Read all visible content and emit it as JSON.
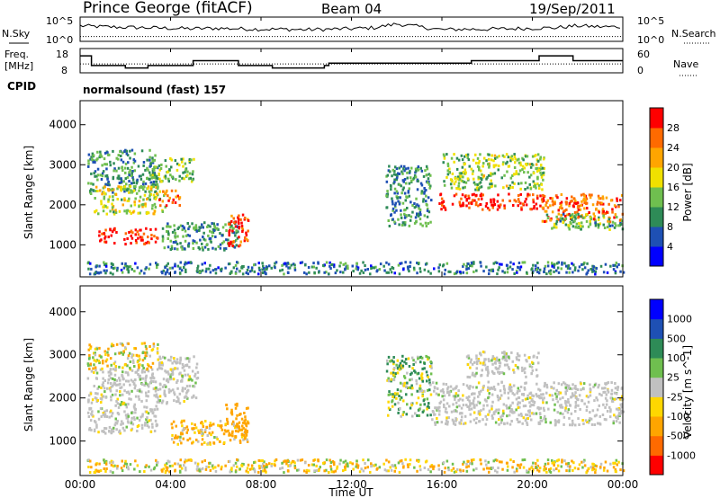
{
  "header": {
    "station": "Prince George (fitACF)",
    "beam": "Beam 04",
    "date": "19/Sep/2011"
  },
  "noise_panel": {
    "left_label": "N.Sky",
    "right_label": "N.Search",
    "left_ticks": [
      "10^5",
      "10^0"
    ],
    "right_ticks": [
      "10^5",
      "10^0"
    ]
  },
  "freq_panel": {
    "left_label_1": "Freq.",
    "left_label_2": "[MHz]",
    "right_label": "Nave",
    "left_ticks": [
      "18",
      "8"
    ],
    "right_ticks": [
      "60",
      "0"
    ]
  },
  "cpid": {
    "label": "CPID",
    "value": "normalsound (fast) 157"
  },
  "x_axis": {
    "label": "Time UT",
    "ticks": [
      "00:00",
      "04:00",
      "08:00",
      "12:00",
      "16:00",
      "20:00",
      "00:00"
    ]
  },
  "colors": {
    "power": [
      "#0000ff",
      "#1e50b4",
      "#2e8b57",
      "#6fbf4f",
      "#f0e000",
      "#ffa500",
      "#ff6a00",
      "#ff0000"
    ],
    "velocity": [
      "#ff0000",
      "#ff6a00",
      "#ffa500",
      "#ffd700",
      "#c0c0c0",
      "#6fbf4f",
      "#2e8b57",
      "#1e50b4",
      "#0000ff"
    ]
  },
  "chart_data": [
    {
      "type": "line",
      "name": "noise",
      "x": [
        0,
        1,
        2,
        3,
        4,
        5,
        6,
        7,
        8,
        9,
        10,
        11,
        12,
        13,
        14,
        15,
        16,
        17,
        18,
        19,
        20,
        21,
        22,
        23,
        24
      ],
      "sky": [
        3.2,
        3.0,
        2.9,
        2.8,
        2.7,
        2.6,
        2.7,
        2.6,
        2.5,
        2.5,
        2.4,
        2.5,
        2.6,
        2.8,
        3.6,
        3.0,
        2.4,
        2.5,
        2.5,
        2.6,
        2.7,
        2.8,
        3.2,
        3.0,
        3.0
      ],
      "search_level": 1.0,
      "xlim": [
        0,
        24
      ]
    },
    {
      "type": "line",
      "name": "frequency",
      "x": [
        0,
        0.5,
        0.5,
        1.0,
        1.0,
        2.0,
        2.0,
        3.0,
        3.0,
        5.0,
        5.0,
        7.0,
        7.0,
        8.5,
        8.5,
        10.8,
        10.8,
        11.0,
        11.0,
        17.3,
        17.3,
        20.3,
        20.3,
        21.8,
        21.8,
        24
      ],
      "freq": [
        15,
        15,
        11,
        11,
        11,
        11,
        10,
        10,
        11,
        11,
        13,
        13,
        11,
        11,
        10,
        10,
        11,
        11,
        12,
        12,
        13,
        13,
        15,
        15,
        13,
        13
      ],
      "nave_level": 22,
      "ylim": [
        8,
        18
      ]
    },
    {
      "type": "heatmap",
      "title": "",
      "xlabel": "Time UT",
      "ylabel": "Slant Range [km]",
      "colorbar_label": "Power [dB]",
      "colorbar_ticks": [
        4,
        8,
        12,
        16,
        20,
        24,
        28
      ],
      "clim": [
        0,
        30
      ],
      "xlim": [
        0,
        24
      ],
      "ylim": [
        200,
        4600
      ],
      "yticks": [
        1000,
        2000,
        3000,
        4000
      ],
      "regions": [
        {
          "t0": 0.3,
          "t1": 3.4,
          "r0": 2300,
          "r1": 3400,
          "value": 10
        },
        {
          "t0": 0.6,
          "t1": 3.8,
          "r0": 1800,
          "r1": 2500,
          "value": 16
        },
        {
          "t0": 0.8,
          "t1": 3.4,
          "r0": 1050,
          "r1": 1450,
          "value": 28
        },
        {
          "t0": 3.4,
          "t1": 4.4,
          "r0": 2000,
          "r1": 2400,
          "value": 24
        },
        {
          "t0": 3.0,
          "t1": 5.0,
          "r0": 2600,
          "r1": 3200,
          "value": 12
        },
        {
          "t0": 3.6,
          "t1": 7.0,
          "r0": 900,
          "r1": 1600,
          "value": 10
        },
        {
          "t0": 6.5,
          "t1": 7.4,
          "r0": 1000,
          "r1": 1800,
          "value": 26
        },
        {
          "t0": 13.5,
          "t1": 15.5,
          "r0": 1500,
          "r1": 3000,
          "value": 10
        },
        {
          "t0": 15.8,
          "t1": 20.5,
          "r0": 1900,
          "r1": 2300,
          "value": 28
        },
        {
          "t0": 16.0,
          "t1": 20.5,
          "r0": 2400,
          "r1": 3300,
          "value": 14
        },
        {
          "t0": 20.3,
          "t1": 24.0,
          "r0": 1600,
          "r1": 2300,
          "value": 24
        },
        {
          "t0": 20.5,
          "t1": 24.0,
          "r0": 1400,
          "r1": 1800,
          "value": 12
        },
        {
          "t0": 0.3,
          "t1": 24.0,
          "r0": 300,
          "r1": 600,
          "value": 8
        }
      ]
    },
    {
      "type": "heatmap",
      "title": "",
      "xlabel": "Time UT",
      "ylabel": "Slant Range [km]",
      "colorbar_label": "Velocity [m s^-1]",
      "colorbar_ticks": [
        1000,
        500,
        100,
        25,
        -25,
        -100,
        -500,
        -1000
      ],
      "clim": [
        -1000,
        1000
      ],
      "xlim": [
        0,
        24
      ],
      "ylim": [
        200,
        4600
      ],
      "yticks": [
        1000,
        2000,
        3000,
        4000
      ],
      "regions": [
        {
          "t0": 0.3,
          "t1": 3.4,
          "r0": 1200,
          "r1": 2700,
          "value": 0
        },
        {
          "t0": 3.4,
          "t1": 5.2,
          "r0": 1900,
          "r1": 3000,
          "value": 0
        },
        {
          "t0": 4.0,
          "t1": 7.4,
          "r0": 950,
          "r1": 1500,
          "value": -120
        },
        {
          "t0": 6.4,
          "t1": 7.4,
          "r0": 1100,
          "r1": 1900,
          "value": -300
        },
        {
          "t0": 0.3,
          "t1": 3.4,
          "r0": 2700,
          "r1": 3300,
          "value": -60
        },
        {
          "t0": 13.5,
          "t1": 15.5,
          "r0": 1600,
          "r1": 3000,
          "value": 60
        },
        {
          "t0": 15.5,
          "t1": 24.0,
          "r0": 1400,
          "r1": 2400,
          "value": 0
        },
        {
          "t0": 17.0,
          "t1": 20.3,
          "r0": 2500,
          "r1": 3100,
          "value": 0
        },
        {
          "t0": 0.3,
          "t1": 24.0,
          "r0": 300,
          "r1": 600,
          "value": -60
        }
      ]
    }
  ]
}
